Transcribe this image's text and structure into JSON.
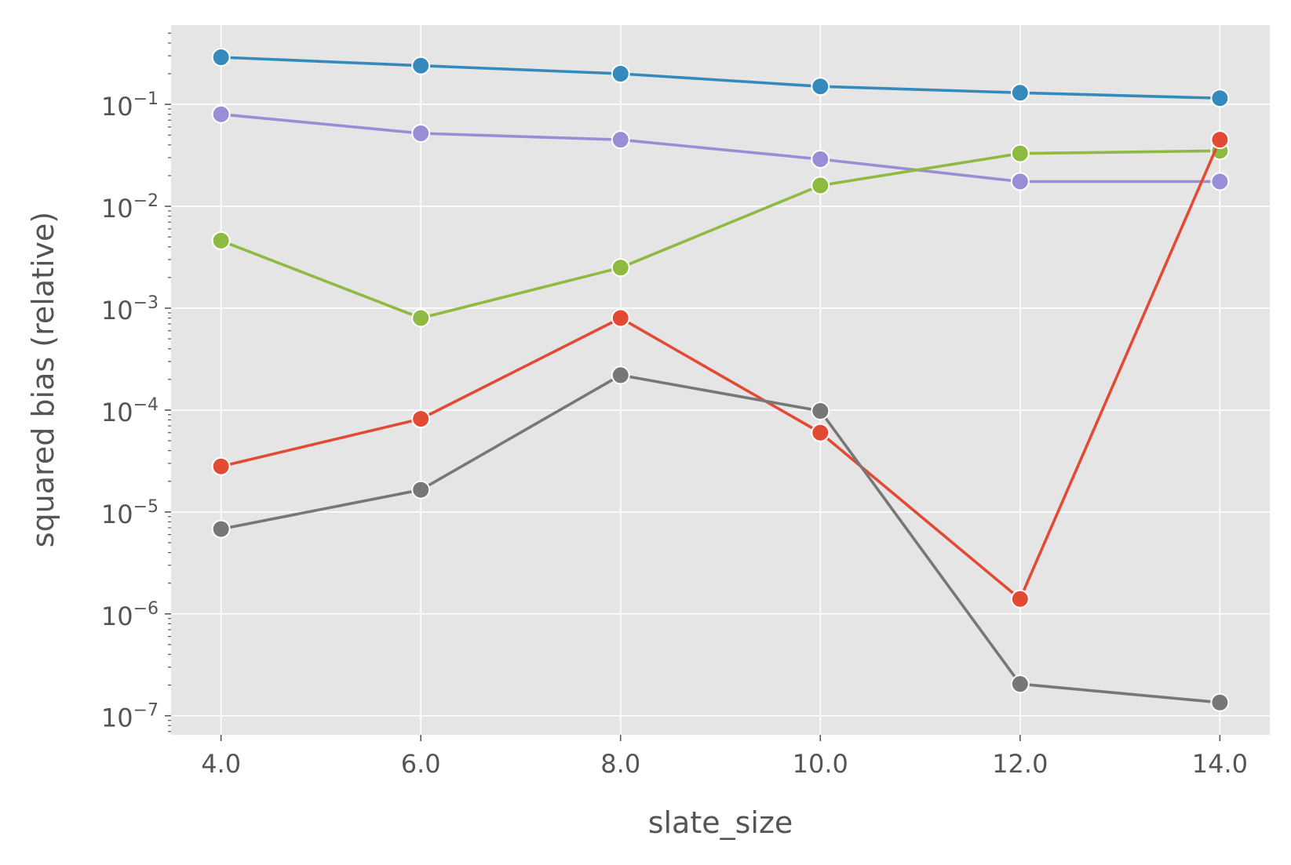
{
  "chart_data": {
    "type": "line",
    "title": "",
    "xlabel": "slate_size",
    "ylabel": "squared bias (relative)",
    "x": [
      4.0,
      6.0,
      8.0,
      10.0,
      12.0,
      14.0
    ],
    "x_ticks": [
      "4.0",
      "6.0",
      "8.0",
      "10.0",
      "12.0",
      "14.0"
    ],
    "xlim": [
      3.5,
      14.5
    ],
    "y_scale": "log",
    "ylim": [
      6.5e-08,
      0.6
    ],
    "y_ticks": [
      {
        "base": "10",
        "exp": "−7",
        "value": 1e-07
      },
      {
        "base": "10",
        "exp": "−6",
        "value": 1e-06
      },
      {
        "base": "10",
        "exp": "−5",
        "value": 1e-05
      },
      {
        "base": "10",
        "exp": "−4",
        "value": 0.0001
      },
      {
        "base": "10",
        "exp": "−3",
        "value": 0.001
      },
      {
        "base": "10",
        "exp": "−2",
        "value": 0.01
      },
      {
        "base": "10",
        "exp": "−1",
        "value": 0.1
      }
    ],
    "grid": true,
    "style": {
      "background": "#e5e5e5",
      "grid_color": "#ffffff",
      "tick_color": "#555555"
    },
    "series": [
      {
        "color": "#348abd",
        "values": [
          0.29,
          0.24,
          0.2,
          0.15,
          0.13,
          0.115
        ]
      },
      {
        "color": "#988ed5",
        "values": [
          0.08,
          0.052,
          0.045,
          0.029,
          0.0175,
          0.0175
        ]
      },
      {
        "color": "#8eba42",
        "values": [
          0.0046,
          0.0008,
          0.0025,
          0.016,
          0.033,
          0.035
        ]
      },
      {
        "color": "#e24a33",
        "values": [
          2.8e-05,
          8.2e-05,
          0.0008,
          6e-05,
          1.4e-06,
          0.045
        ]
      },
      {
        "color": "#777777",
        "values": [
          6.8e-06,
          1.65e-05,
          0.00022,
          9.8e-05,
          2.05e-07,
          1.35e-07
        ]
      }
    ]
  }
}
